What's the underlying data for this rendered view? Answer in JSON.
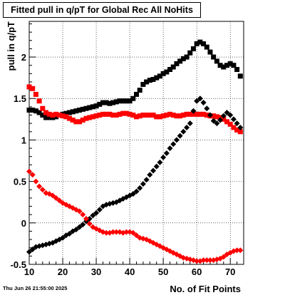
{
  "chart_data": {
    "type": "scatter",
    "title": "Fitted pull in q/pT for Global Rec All NoHits",
    "xlabel": "No. of Fit Points",
    "ylabel": "pull in q/pT",
    "xlim": [
      10,
      74
    ],
    "ylim": [
      -0.5,
      2.43
    ],
    "xticks": [
      10,
      20,
      30,
      40,
      50,
      60,
      70
    ],
    "yticks": [
      -0.5,
      0,
      0.5,
      1,
      1.5,
      2
    ],
    "ytick_labels": [
      "-0.5",
      "0",
      "0.5",
      "1",
      "1.5",
      "2"
    ],
    "grid": true,
    "timestamp": "Thu Jun 26 21:55:00 2025",
    "series": [
      {
        "color": "#000000",
        "marker": "square",
        "x": [
          10,
          11,
          12,
          13,
          14,
          15,
          16,
          17,
          18,
          19,
          20,
          21,
          22,
          23,
          24,
          25,
          26,
          27,
          28,
          29,
          30,
          31,
          32,
          33,
          34,
          35,
          36,
          37,
          38,
          39,
          40,
          41,
          42,
          43,
          44,
          45,
          46,
          47,
          48,
          49,
          50,
          51,
          52,
          53,
          54,
          55,
          56,
          57,
          58,
          59,
          60,
          61,
          62,
          63,
          64,
          65,
          66,
          67,
          68,
          69,
          70,
          71,
          72,
          73
        ],
        "y": [
          1.36,
          1.36,
          1.35,
          1.33,
          1.3,
          1.27,
          1.27,
          1.27,
          1.28,
          1.3,
          1.31,
          1.32,
          1.33,
          1.34,
          1.35,
          1.36,
          1.37,
          1.38,
          1.39,
          1.4,
          1.41,
          1.43,
          1.45,
          1.45,
          1.44,
          1.45,
          1.46,
          1.47,
          1.47,
          1.47,
          1.47,
          1.5,
          1.55,
          1.6,
          1.67,
          1.7,
          1.72,
          1.73,
          1.75,
          1.77,
          1.8,
          1.82,
          1.85,
          1.88,
          1.92,
          1.95,
          1.98,
          2.0,
          2.05,
          2.1,
          2.16,
          2.18,
          2.16,
          2.12,
          2.06,
          2.0,
          1.95,
          1.9,
          1.88,
          1.9,
          1.92,
          1.9,
          1.85,
          1.77
        ]
      },
      {
        "color": "#ff0000",
        "marker": "square",
        "x": [
          10,
          11,
          12,
          13,
          14,
          15,
          16,
          17,
          18,
          19,
          20,
          21,
          22,
          23,
          24,
          25,
          26,
          27,
          28,
          29,
          30,
          31,
          32,
          33,
          34,
          35,
          36,
          37,
          38,
          39,
          40,
          41,
          42,
          43,
          44,
          45,
          46,
          47,
          48,
          49,
          50,
          51,
          52,
          53,
          54,
          55,
          56,
          57,
          58,
          59,
          60,
          61,
          62,
          63,
          64,
          65,
          66,
          67,
          68,
          69,
          70,
          71,
          72,
          73
        ],
        "y": [
          1.64,
          1.62,
          1.55,
          1.47,
          1.38,
          1.33,
          1.31,
          1.3,
          1.31,
          1.3,
          1.29,
          1.28,
          1.26,
          1.24,
          1.22,
          1.22,
          1.24,
          1.26,
          1.27,
          1.28,
          1.29,
          1.3,
          1.31,
          1.31,
          1.31,
          1.3,
          1.3,
          1.31,
          1.32,
          1.32,
          1.31,
          1.3,
          1.28,
          1.29,
          1.3,
          1.3,
          1.3,
          1.3,
          1.28,
          1.28,
          1.29,
          1.3,
          1.31,
          1.3,
          1.29,
          1.29,
          1.3,
          1.31,
          1.31,
          1.31,
          1.31,
          1.31,
          1.31,
          1.3,
          1.29,
          1.29,
          1.28,
          1.27,
          1.25,
          1.22,
          1.19,
          1.15,
          1.12,
          1.1
        ]
      },
      {
        "color": "#000000",
        "marker": "diamond",
        "x": [
          10,
          11,
          12,
          13,
          14,
          15,
          16,
          17,
          18,
          19,
          20,
          21,
          22,
          23,
          24,
          25,
          26,
          27,
          28,
          29,
          30,
          31,
          32,
          33,
          34,
          35,
          36,
          37,
          38,
          39,
          40,
          41,
          42,
          43,
          44,
          45,
          46,
          47,
          48,
          49,
          50,
          51,
          52,
          53,
          54,
          55,
          56,
          57,
          58,
          59,
          60,
          61,
          62,
          63,
          64,
          65,
          66,
          67,
          68,
          69,
          70,
          71,
          72,
          73
        ],
        "y": [
          -0.35,
          -0.32,
          -0.29,
          -0.28,
          -0.27,
          -0.26,
          -0.25,
          -0.24,
          -0.22,
          -0.2,
          -0.18,
          -0.15,
          -0.13,
          -0.1,
          -0.08,
          -0.05,
          -0.02,
          0.02,
          0.05,
          0.09,
          0.12,
          0.16,
          0.2,
          0.22,
          0.23,
          0.24,
          0.25,
          0.27,
          0.29,
          0.31,
          0.33,
          0.35,
          0.38,
          0.42,
          0.47,
          0.52,
          0.58,
          0.63,
          0.68,
          0.73,
          0.79,
          0.84,
          0.9,
          0.95,
          1.0,
          1.05,
          1.1,
          1.15,
          1.2,
          1.35,
          1.47,
          1.5,
          1.45,
          1.38,
          1.3,
          1.23,
          1.2,
          1.24,
          1.29,
          1.33,
          1.3,
          1.25,
          1.2,
          1.15
        ]
      },
      {
        "color": "#ff0000",
        "marker": "diamond",
        "x": [
          10,
          11,
          12,
          13,
          14,
          15,
          16,
          17,
          18,
          19,
          20,
          21,
          22,
          23,
          24,
          25,
          26,
          27,
          28,
          29,
          30,
          31,
          32,
          33,
          34,
          35,
          36,
          37,
          38,
          39,
          40,
          41,
          42,
          43,
          44,
          45,
          46,
          47,
          48,
          49,
          50,
          51,
          52,
          53,
          54,
          55,
          56,
          57,
          58,
          59,
          60,
          61,
          62,
          63,
          64,
          65,
          66,
          67,
          68,
          69,
          70,
          71,
          72,
          73
        ],
        "y": [
          0.62,
          0.58,
          0.5,
          0.44,
          0.4,
          0.36,
          0.35,
          0.33,
          0.3,
          0.27,
          0.24,
          0.22,
          0.2,
          0.18,
          0.16,
          0.14,
          0.1,
          0.05,
          -0.01,
          -0.05,
          -0.07,
          -0.09,
          -0.11,
          -0.12,
          -0.12,
          -0.11,
          -0.11,
          -0.11,
          -0.12,
          -0.11,
          -0.11,
          -0.12,
          -0.15,
          -0.18,
          -0.19,
          -0.2,
          -0.22,
          -0.24,
          -0.26,
          -0.28,
          -0.3,
          -0.32,
          -0.34,
          -0.36,
          -0.38,
          -0.4,
          -0.42,
          -0.43,
          -0.44,
          -0.45,
          -0.46,
          -0.46,
          -0.45,
          -0.45,
          -0.45,
          -0.45,
          -0.44,
          -0.43,
          -0.41,
          -0.38,
          -0.36,
          -0.34,
          -0.33,
          -0.33
        ]
      }
    ]
  }
}
